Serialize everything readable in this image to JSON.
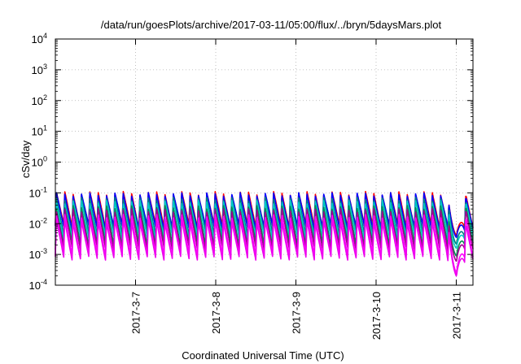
{
  "chart_data": {
    "type": "line",
    "title": "/data/run/goesPlots/archive/2017-03-11/05:00/flux/../bryn/5daysMars.plot",
    "xlabel": "Coordinated Universal Time (UTC)",
    "ylabel": "cSv/day",
    "yscale": "log",
    "ylim": [
      0.0001,
      10000
    ],
    "xlim": [
      "2017-03-06T00:00",
      "2017-03-11T05:00"
    ],
    "x_ticks": [
      "2017-3-7",
      "2017-3-8",
      "2017-3-9",
      "2017-3-10",
      "2017-3-11"
    ],
    "y_ticks": [
      {
        "base": "10",
        "exp": "-4"
      },
      {
        "base": "10",
        "exp": "-3"
      },
      {
        "base": "10",
        "exp": "-2"
      },
      {
        "base": "10",
        "exp": "-1"
      },
      {
        "base": "10",
        "exp": "0"
      },
      {
        "base": "10",
        "exp": "1"
      },
      {
        "base": "10",
        "exp": "2"
      },
      {
        "base": "10",
        "exp": "3"
      },
      {
        "base": "10",
        "exp": "4"
      }
    ],
    "grid": true,
    "cycle_hours": 2.5,
    "dip_start": "2017-03-10T21:00",
    "dip_end": "2017-03-11T03:00",
    "series": [
      {
        "color": "#ff0000",
        "peak": 0.1,
        "trough": 0.0085,
        "dip": 0.0042
      },
      {
        "color": "#0000ff",
        "peak": 0.092,
        "trough": 0.0075,
        "dip": 0.0036
      },
      {
        "color": "#008080",
        "peak": 0.065,
        "trough": 0.0048,
        "dip": 0.0022
      },
      {
        "color": "#00c8c8",
        "peak": 0.052,
        "trough": 0.0036,
        "dip": 0.0016
      },
      {
        "color": "#009050",
        "peak": 0.035,
        "trough": 0.0022,
        "dip": 0.0009
      },
      {
        "color": "#a00090",
        "peak": 0.028,
        "trough": 0.0016,
        "dip": 0.0006
      },
      {
        "color": "#ff00ff",
        "peak": 0.018,
        "trough": 0.00095,
        "dip": 0.00025
      },
      {
        "color": "#ee00ee",
        "peak": 0.012,
        "trough": 0.00075,
        "dip": 0.0002
      }
    ]
  }
}
